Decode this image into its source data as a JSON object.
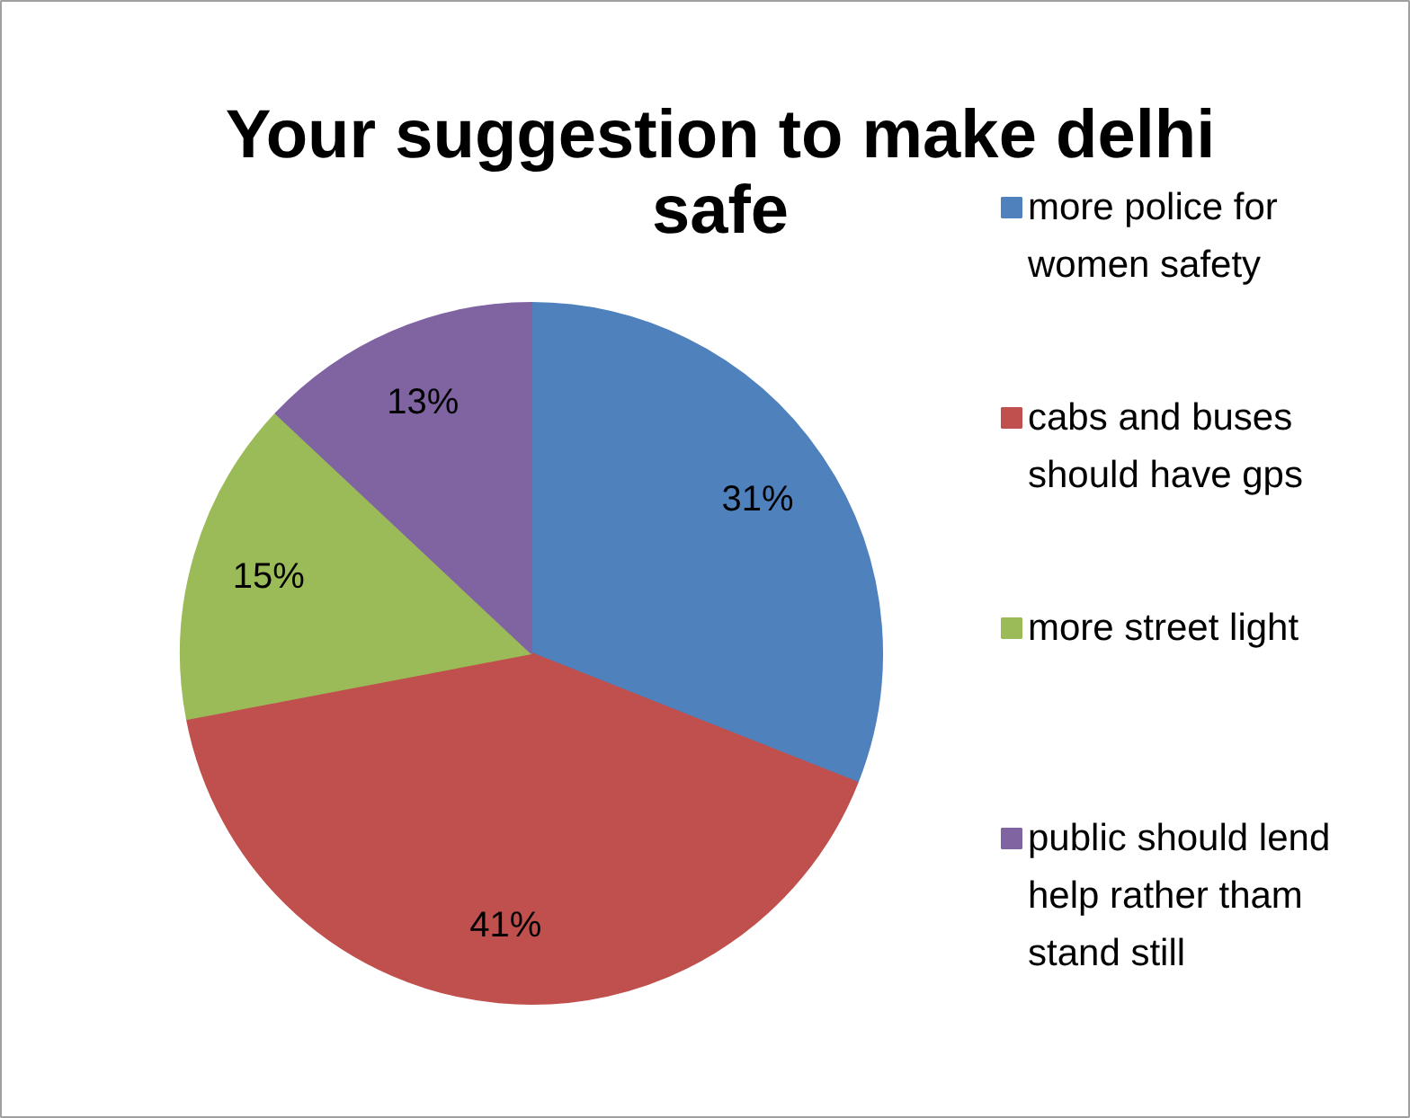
{
  "chart_data": {
    "type": "pie",
    "title": "Your suggestion to make delhi safe",
    "categories": [
      "more police for women safety",
      "cabs and buses should have gps",
      "more street light",
      "public should lend help rather tham stand still"
    ],
    "values": [
      31,
      41,
      15,
      13
    ],
    "colors": [
      "#4f81bd",
      "#c0504d",
      "#9bbb59",
      "#8064a2"
    ],
    "value_labels": [
      "31%",
      "41%",
      "15%",
      "13%"
    ],
    "legend": "right"
  }
}
